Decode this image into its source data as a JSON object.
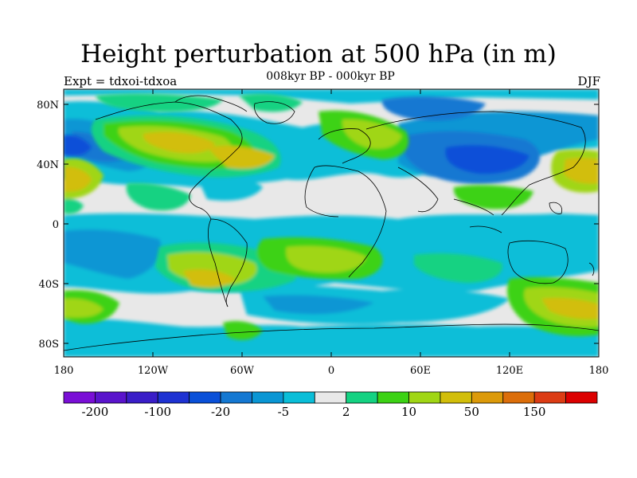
{
  "title": "Height perturbation at 500 hPa (in m)",
  "left_label": "Expt = tdxoi-tdxoa",
  "center_label": "008kyr BP - 000kyr BP",
  "right_label": "DJF",
  "lat_ticks": [
    "80N",
    "40N",
    "0",
    "40S",
    "80S"
  ],
  "lon_ticks": [
    "180",
    "120W",
    "60W",
    "0",
    "60E",
    "120E",
    "180"
  ],
  "colorbar": {
    "colors": [
      "#7a0fd6",
      "#5a14cc",
      "#3a1ec8",
      "#1e32d2",
      "#0a50d8",
      "#1478d2",
      "#0a96d4",
      "#0abed8",
      "#e8e8e8",
      "#14d282",
      "#3cd214",
      "#a0d614",
      "#d2be0a",
      "#dc9a0a",
      "#dc6e0a",
      "#dc3c14",
      "#dc0000"
    ],
    "labels": [
      "-200",
      "-100",
      "-20",
      "-5",
      "2",
      "10",
      "50",
      "150"
    ]
  },
  "palette": {
    "land_outline": "#000000",
    "background": "#e8e8e8"
  }
}
